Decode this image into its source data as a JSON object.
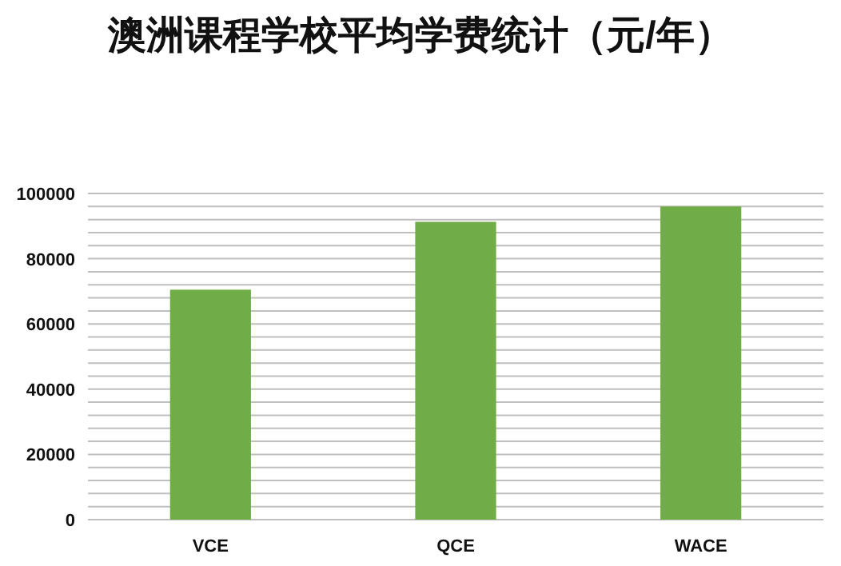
{
  "chart_data": {
    "type": "bar",
    "title": "澳洲课程学校平均学费统计（元/年）",
    "categories": [
      "VCE",
      "QCE",
      "WACE"
    ],
    "values": [
      70500,
      91300,
      96000
    ],
    "color": "#70ad47",
    "ylim": [
      0,
      100000
    ],
    "yticks": [
      0,
      {
        "value": 4000,
        "label": null
      },
      {
        "value": 8000,
        "label": null
      },
      {
        "value": 12000,
        "label": null
      },
      {
        "value": 16000,
        "label": null
      },
      20000,
      {
        "value": 24000,
        "label": null
      },
      {
        "value": 28000,
        "label": null
      },
      {
        "value": 32000,
        "label": null
      },
      {
        "value": 36000,
        "label": null
      },
      40000,
      {
        "value": 44000,
        "label": null
      },
      {
        "value": 48000,
        "label": null
      },
      {
        "value": 52000,
        "label": null
      },
      {
        "value": 56000,
        "label": null
      },
      60000,
      {
        "value": 64000,
        "label": null
      },
      {
        "value": 68000,
        "label": null
      },
      {
        "value": 72000,
        "label": null
      },
      {
        "value": 76000,
        "label": null
      },
      80000,
      {
        "value": 84000,
        "label": null
      },
      {
        "value": 88000,
        "label": null
      },
      {
        "value": 92000,
        "label": null
      },
      {
        "value": 96000,
        "label": null
      },
      100000
    ],
    "grid": "y"
  }
}
